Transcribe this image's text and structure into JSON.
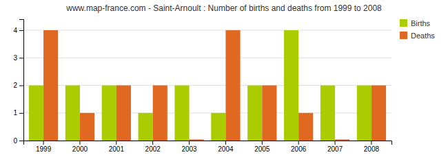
{
  "chart_data": {
    "type": "bar",
    "title": "www.map-france.com - Saint-Arnoult : Number of births and deaths from 1999 to 2008",
    "categories": [
      "1999",
      "2000",
      "2001",
      "2002",
      "2003",
      "2004",
      "2005",
      "2006",
      "2007",
      "2008"
    ],
    "series": [
      {
        "name": "Births",
        "color": "#aacc00",
        "values": [
          2,
          2,
          2,
          1,
          2,
          1,
          2,
          4,
          2,
          2
        ]
      },
      {
        "name": "Deaths",
        "color": "#e06820",
        "values": [
          4,
          1,
          2,
          2,
          0.04,
          4,
          2,
          1,
          0.04,
          2
        ]
      }
    ],
    "ylim": [
      0,
      4.4
    ],
    "yticks": [
      0,
      1,
      2,
      3,
      4
    ],
    "grid": true,
    "legend": "upper right"
  }
}
